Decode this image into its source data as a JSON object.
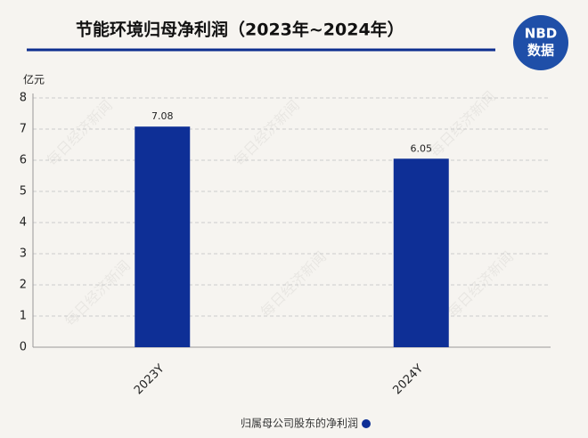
{
  "chart_data": {
    "type": "bar",
    "title": "节能环境归母净利润（2023年~2024年）",
    "y_unit": "亿元",
    "categories": [
      "2023Y",
      "2024Y"
    ],
    "series": [
      {
        "name": "归属母公司股东的净利润",
        "color": "#0e2f96",
        "values": [
          7.08,
          6.05
        ]
      }
    ],
    "ylim": [
      0,
      8
    ],
    "yticks": [
      0,
      1,
      2,
      3,
      4,
      5,
      6,
      7,
      8
    ],
    "grid": true,
    "legend": "bottom"
  },
  "logo": {
    "line1": "NBD",
    "line2": "数据"
  },
  "watermark": "每日经济新闻"
}
